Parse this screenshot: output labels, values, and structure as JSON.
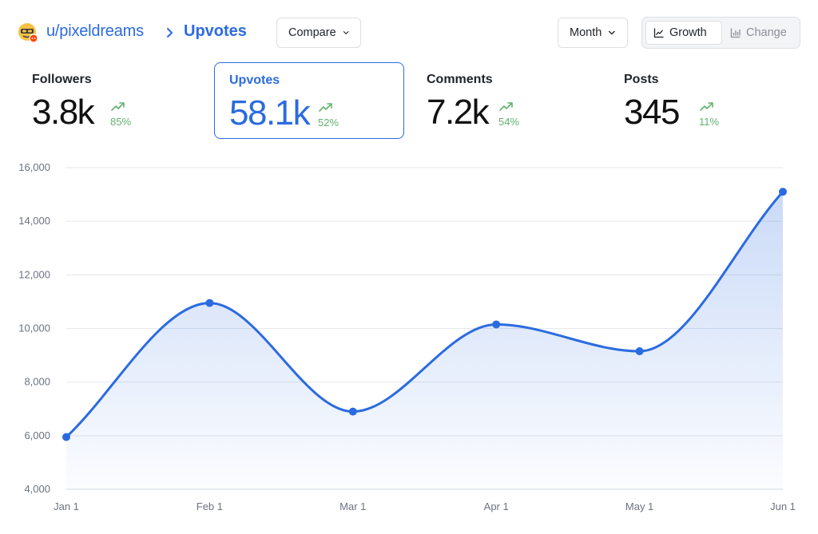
{
  "header": {
    "username": "u/pixeldreams",
    "page": "Upvotes",
    "compare_label": "Compare",
    "period_label": "Month",
    "view_toggle": {
      "growth_label": "Growth",
      "change_label": "Change",
      "selected": "Growth"
    }
  },
  "stats": [
    {
      "label": "Followers",
      "value": "3.8k",
      "change": "85%",
      "active": false
    },
    {
      "label": "Upvotes",
      "value": "58.1k",
      "change": "52%",
      "active": true
    },
    {
      "label": "Comments",
      "value": "7.2k",
      "change": "54%",
      "active": false
    },
    {
      "label": "Posts",
      "value": "345",
      "change": "11%",
      "active": false
    }
  ],
  "colors": {
    "accent": "#2b6be0",
    "trend_up": "#63b26f",
    "grid": "#e5e7eb"
  },
  "chart_data": {
    "type": "area",
    "x": [
      "Jan 1",
      "Feb 1",
      "Mar 1",
      "Apr 1",
      "May 1",
      "Jun 1"
    ],
    "values": [
      5950,
      10950,
      6900,
      10150,
      9150,
      15100
    ],
    "ylim": [
      4000,
      16000
    ],
    "yticks": [
      "4,000",
      "6,000",
      "8,000",
      "10,000",
      "12,000",
      "14,000",
      "16,000"
    ],
    "ytick_values": [
      4000,
      6000,
      8000,
      10000,
      12000,
      14000,
      16000
    ],
    "grid": true,
    "legend": false
  }
}
